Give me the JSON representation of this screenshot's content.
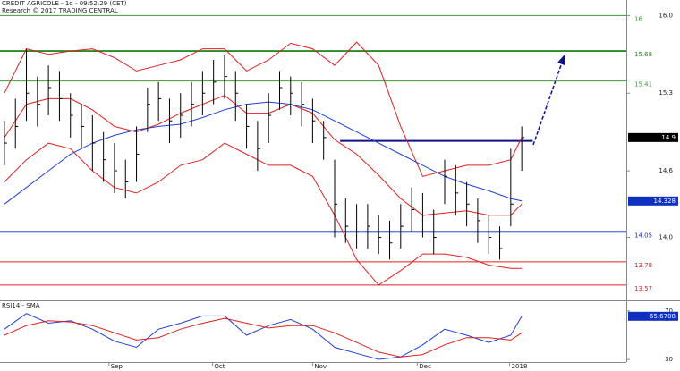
{
  "chart_data": [
    {
      "type": "ohlc",
      "title": "CREDIT AGRICOLE - 1d - 09:52:29 (CET)",
      "subtitle": "Research © 2017 TRADING CENTRAL",
      "x": [
        0,
        1,
        2,
        3,
        4,
        5,
        6,
        7,
        8,
        9,
        10,
        11,
        12,
        13,
        14,
        15,
        16,
        17,
        18,
        19,
        20,
        21,
        22,
        23,
        24,
        25,
        26,
        27,
        28,
        29,
        30,
        31,
        32,
        33,
        34,
        35,
        36,
        37,
        38,
        39,
        40,
        41,
        42,
        43,
        44,
        45,
        46,
        47
      ],
      "high": [
        15.05,
        15.25,
        15.7,
        15.45,
        15.55,
        15.5,
        15.3,
        15.2,
        15.1,
        14.95,
        14.85,
        14.7,
        15.0,
        15.35,
        15.4,
        15.25,
        15.3,
        15.4,
        15.5,
        15.6,
        15.65,
        15.5,
        15.2,
        15.05,
        15.3,
        15.5,
        15.45,
        15.4,
        15.25,
        15.05,
        14.7,
        14.35,
        14.3,
        14.3,
        14.2,
        14.15,
        14.3,
        14.45,
        14.4,
        14.25,
        14.7,
        14.65,
        14.5,
        14.35,
        14.2,
        14.1,
        14.8,
        15.0
      ],
      "low": [
        14.65,
        14.8,
        15.05,
        15.0,
        15.1,
        15.05,
        14.9,
        14.8,
        14.6,
        14.5,
        14.4,
        14.35,
        14.5,
        14.95,
        15.05,
        14.85,
        14.9,
        15.0,
        15.1,
        15.2,
        15.25,
        15.05,
        14.8,
        14.6,
        14.85,
        15.15,
        15.1,
        15.0,
        14.85,
        14.7,
        14.0,
        13.95,
        13.9,
        13.9,
        13.85,
        13.8,
        13.9,
        14.05,
        14.0,
        13.85,
        14.3,
        14.2,
        14.1,
        13.95,
        13.85,
        13.8,
        14.1,
        14.6
      ],
      "close": [
        14.85,
        15.0,
        15.3,
        15.2,
        15.35,
        15.25,
        15.1,
        15.0,
        14.85,
        14.7,
        14.6,
        14.5,
        14.75,
        15.2,
        15.25,
        15.05,
        15.1,
        15.2,
        15.3,
        15.4,
        15.45,
        15.3,
        15.0,
        14.8,
        15.1,
        15.35,
        15.3,
        15.2,
        15.05,
        14.9,
        14.3,
        14.1,
        14.05,
        14.1,
        14.0,
        13.95,
        14.1,
        14.25,
        14.2,
        14.0,
        14.55,
        14.4,
        14.3,
        14.15,
        14.0,
        13.9,
        14.3,
        14.9
      ],
      "color": "#000000",
      "line_x": [
        0,
        2,
        4,
        6,
        8,
        10,
        12,
        14,
        16,
        18,
        20,
        22,
        24,
        26,
        28,
        30,
        32,
        34,
        36,
        38,
        40,
        42,
        44,
        46,
        47
      ],
      "lines": [
        {
          "color": "#e02020",
          "values": [
            15.3,
            15.7,
            15.65,
            15.68,
            15.7,
            15.62,
            15.5,
            15.55,
            15.6,
            15.7,
            15.7,
            15.5,
            15.6,
            15.75,
            15.7,
            15.55,
            15.76,
            15.55,
            15.0,
            14.55,
            14.6,
            14.65,
            14.65,
            14.7,
            14.9
          ]
        },
        {
          "color": "#e02020",
          "values": [
            14.9,
            15.2,
            15.25,
            15.25,
            15.15,
            15.0,
            14.95,
            15.02,
            15.12,
            15.2,
            15.28,
            15.12,
            15.12,
            15.2,
            15.12,
            14.88,
            14.75,
            14.56,
            14.35,
            14.2,
            14.22,
            14.24,
            14.2,
            14.2,
            14.3
          ]
        },
        {
          "color": "#e02020",
          "values": [
            14.5,
            14.7,
            14.85,
            14.8,
            14.6,
            14.45,
            14.4,
            14.5,
            14.65,
            14.7,
            14.85,
            14.75,
            14.65,
            14.65,
            14.55,
            14.2,
            13.8,
            13.57,
            13.7,
            13.85,
            13.85,
            13.82,
            13.75,
            13.72,
            13.72
          ]
        },
        {
          "color": "#2040d0",
          "values": [
            14.3,
            14.45,
            14.6,
            14.75,
            14.85,
            14.92,
            14.97,
            15.0,
            15.02,
            15.08,
            15.15,
            15.2,
            15.22,
            15.2,
            15.15,
            15.05,
            14.95,
            14.85,
            14.75,
            14.65,
            14.55,
            14.48,
            14.42,
            14.35,
            14.328
          ]
        }
      ],
      "levels": [
        {
          "value": 16,
          "color": "#3a9a3a"
        },
        {
          "value": 15.68,
          "color": "#2a8a2a"
        },
        {
          "value": 15.41,
          "color": "#3a9a3a"
        },
        {
          "value": 14.05,
          "color": "#1030c0"
        },
        {
          "value": 13.78,
          "color": "#e02020"
        },
        {
          "value": 13.57,
          "color": "#e02020"
        }
      ],
      "breakout": {
        "value": 14.87,
        "x": [
          30.5,
          48
        ],
        "color": "#10108a"
      },
      "last_labels": [
        {
          "value": 14.9,
          "color": "#000000"
        },
        {
          "value": 14.328,
          "color": "#1030c0"
        }
      ],
      "xlim": [
        -0.4,
        56.5
      ],
      "ylim": [
        13.44,
        16.14
      ],
      "yticks": [
        {
          "value": 16,
          "label": "16.0"
        },
        15.3,
        14.6,
        {
          "value": 14,
          "label": "14.0"
        }
      ],
      "xticks": [
        {
          "value": 9.5,
          "label": "Sep"
        },
        {
          "value": 18.9,
          "label": "Oct"
        },
        {
          "value": 28,
          "label": "Nov"
        },
        {
          "value": 37.5,
          "label": "Dec"
        },
        {
          "value": 45.9,
          "label": "2018"
        }
      ]
    },
    {
      "type": "line",
      "title": "RSI14 - SMA",
      "line_x": [
        0,
        2,
        4,
        6,
        8,
        10,
        12,
        14,
        16,
        18,
        20,
        22,
        24,
        26,
        28,
        30,
        32,
        34,
        36,
        38,
        40,
        42,
        44,
        46,
        47
      ],
      "lines": [
        {
          "color": "#2040d0",
          "values": [
            55,
            68,
            60,
            62,
            55,
            45,
            40,
            55,
            60,
            66,
            66,
            50,
            58,
            63,
            55,
            40,
            35,
            30,
            32,
            42,
            55,
            50,
            44,
            50,
            65.6708
          ]
        },
        {
          "color": "#e02020",
          "values": [
            50,
            58,
            62,
            61,
            58,
            52,
            46,
            48,
            55,
            60,
            64,
            60,
            56,
            58,
            58,
            52,
            44,
            36,
            32,
            34,
            42,
            48,
            48,
            46,
            52
          ]
        }
      ],
      "last_labels": [
        {
          "value": 65.6708,
          "color": "#1030c0"
        }
      ],
      "xlim": [
        -0.4,
        56.5
      ],
      "ylim": [
        27.8,
        78.1
      ],
      "yticks": [
        70,
        30
      ]
    }
  ]
}
